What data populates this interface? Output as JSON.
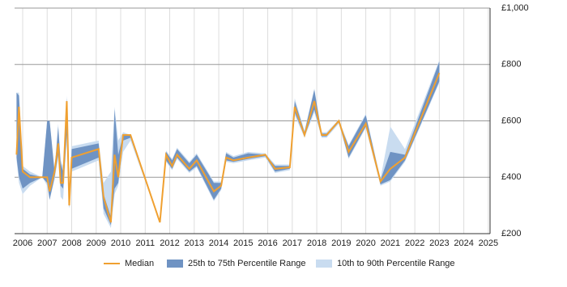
{
  "chart_data": {
    "type": "line-range",
    "x": [
      2005.75,
      2005.85,
      2006.0,
      2006.3,
      2006.8,
      2007.0,
      2007.1,
      2007.3,
      2007.45,
      2007.55,
      2007.65,
      2007.8,
      2007.9,
      2008.0,
      2009.1,
      2009.3,
      2009.6,
      2009.75,
      2009.9,
      2010.1,
      2010.4,
      2011.6,
      2011.85,
      2012.1,
      2012.3,
      2012.8,
      2013.1,
      2013.8,
      2014.1,
      2014.3,
      2014.6,
      2015.2,
      2015.9,
      2016.3,
      2016.9,
      2017.1,
      2017.5,
      2017.9,
      2018.2,
      2018.4,
      2018.9,
      2019.3,
      2020.0,
      2020.6,
      2021.0,
      2021.6,
      2023.0
    ],
    "series": [
      {
        "name": "Median",
        "color": "#f0a030",
        "values": [
          480,
          650,
          420,
          400,
          400,
          400,
          350,
          420,
          520,
          380,
          380,
          670,
          300,
          470,
          500,
          330,
          240,
          480,
          400,
          550,
          550,
          240,
          480,
          440,
          480,
          430,
          460,
          350,
          370,
          470,
          460,
          470,
          480,
          430,
          435,
          650,
          550,
          670,
          550,
          550,
          600,
          490,
          590,
          385,
          430,
          470,
          770
        ]
      },
      {
        "name": "25th to 75th Percentile Range",
        "color": "#6f93c3",
        "low": [
          470,
          400,
          360,
          380,
          400,
          380,
          320,
          400,
          480,
          370,
          360,
          550,
          290,
          430,
          470,
          290,
          230,
          360,
          380,
          530,
          540,
          240,
          460,
          430,
          470,
          420,
          440,
          320,
          360,
          460,
          455,
          465,
          475,
          420,
          430,
          630,
          545,
          640,
          545,
          545,
          595,
          470,
          580,
          375,
          390,
          460,
          740
        ],
        "high": [
          700,
          690,
          430,
          410,
          400,
          600,
          600,
          420,
          580,
          450,
          420,
          680,
          310,
          500,
          520,
          340,
          260,
          640,
          480,
          550,
          550,
          240,
          490,
          460,
          500,
          450,
          480,
          380,
          380,
          485,
          470,
          485,
          480,
          440,
          440,
          670,
          560,
          710,
          555,
          555,
          600,
          510,
          620,
          390,
          490,
          480,
          810
        ]
      },
      {
        "name": "10th to 90th Percentile Range",
        "color": "#c9dcf0",
        "low": [
          460,
          380,
          340,
          370,
          400,
          370,
          320,
          390,
          470,
          330,
          320,
          540,
          290,
          420,
          460,
          270,
          220,
          340,
          370,
          490,
          530,
          240,
          455,
          425,
          465,
          415,
          435,
          315,
          355,
          455,
          450,
          460,
          470,
          415,
          425,
          620,
          540,
          630,
          540,
          540,
          590,
          465,
          575,
          370,
          385,
          455,
          735
        ],
        "high": [
          700,
          700,
          440,
          420,
          400,
          600,
          600,
          430,
          590,
          460,
          440,
          690,
          320,
          510,
          530,
          380,
          420,
          650,
          530,
          560,
          550,
          240,
          495,
          465,
          505,
          455,
          485,
          385,
          385,
          490,
          475,
          490,
          485,
          445,
          445,
          680,
          565,
          715,
          560,
          560,
          605,
          515,
          625,
          395,
          580,
          500,
          815
        ]
      }
    ],
    "xlim": [
      2005.67,
      2025.07
    ],
    "xticks": [
      2006,
      2007,
      2008,
      2009,
      2010,
      2011,
      2012,
      2013,
      2014,
      2015,
      2016,
      2017,
      2018,
      2019,
      2020,
      2021,
      2022,
      2023,
      2024,
      2025
    ],
    "ylim": [
      200,
      1000
    ],
    "yticks": [
      {
        "value": 200,
        "label": "£200"
      },
      {
        "value": 400,
        "label": "£400"
      },
      {
        "value": 600,
        "label": "£600"
      },
      {
        "value": 800,
        "label": "£800"
      },
      {
        "value": 1000,
        "label": "£1,000"
      }
    ],
    "grid": true
  }
}
